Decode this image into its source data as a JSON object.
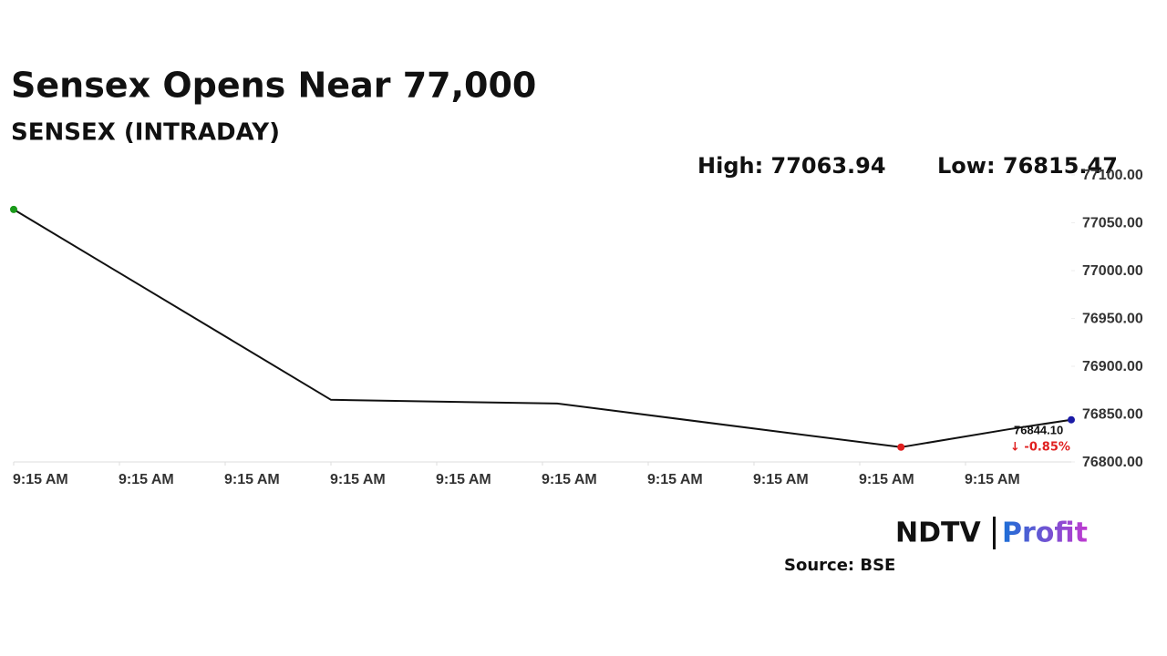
{
  "chart_data": {
    "type": "line",
    "title": "Sensex Opens Near 77,000",
    "subtitle": "SENSEX (INTRADAY)",
    "high_label": "High: 77063.94",
    "low_label": "Low: 76815.47",
    "x": [
      0,
      3,
      5.14,
      8.39,
      9.4,
      10
    ],
    "xlim": [
      0,
      10
    ],
    "xticks": [
      {
        "value": 0,
        "label": "9:15 AM"
      },
      {
        "value": 1,
        "label": "9:15 AM"
      },
      {
        "value": 2,
        "label": "9:15 AM"
      },
      {
        "value": 3,
        "label": "9:15 AM"
      },
      {
        "value": 4,
        "label": "9:15 AM"
      },
      {
        "value": 5,
        "label": "9:15 AM"
      },
      {
        "value": 6,
        "label": "9:15 AM"
      },
      {
        "value": 7,
        "label": "9:15 AM"
      },
      {
        "value": 8,
        "label": "9:15 AM"
      },
      {
        "value": 9,
        "label": "9:15 AM"
      }
    ],
    "series": [
      {
        "name": "SENSEX",
        "color": "#111111",
        "values": [
          77063.94,
          76865,
          76861,
          76815.47,
          76834,
          76844.1
        ],
        "point_colors": [
          "#1a9a1a",
          null,
          null,
          "#e02020",
          null,
          "#1a1aa6"
        ]
      }
    ],
    "ylim": [
      76800,
      77100
    ],
    "yticks": [
      {
        "value": 76800,
        "label": "76800.00"
      },
      {
        "value": 76850,
        "label": "76850.00"
      },
      {
        "value": 76900,
        "label": "76900.00"
      },
      {
        "value": 76950,
        "label": "76950.00"
      },
      {
        "value": 77000,
        "label": "77000.00"
      },
      {
        "value": 77050,
        "label": "77050.00"
      },
      {
        "value": 77100,
        "label": "77100.00"
      }
    ],
    "last_label": "76844.10",
    "change_label": "↓ -0.85%",
    "brand": "NDTV",
    "brand_product": "Profit",
    "source": "Source: BSE"
  }
}
